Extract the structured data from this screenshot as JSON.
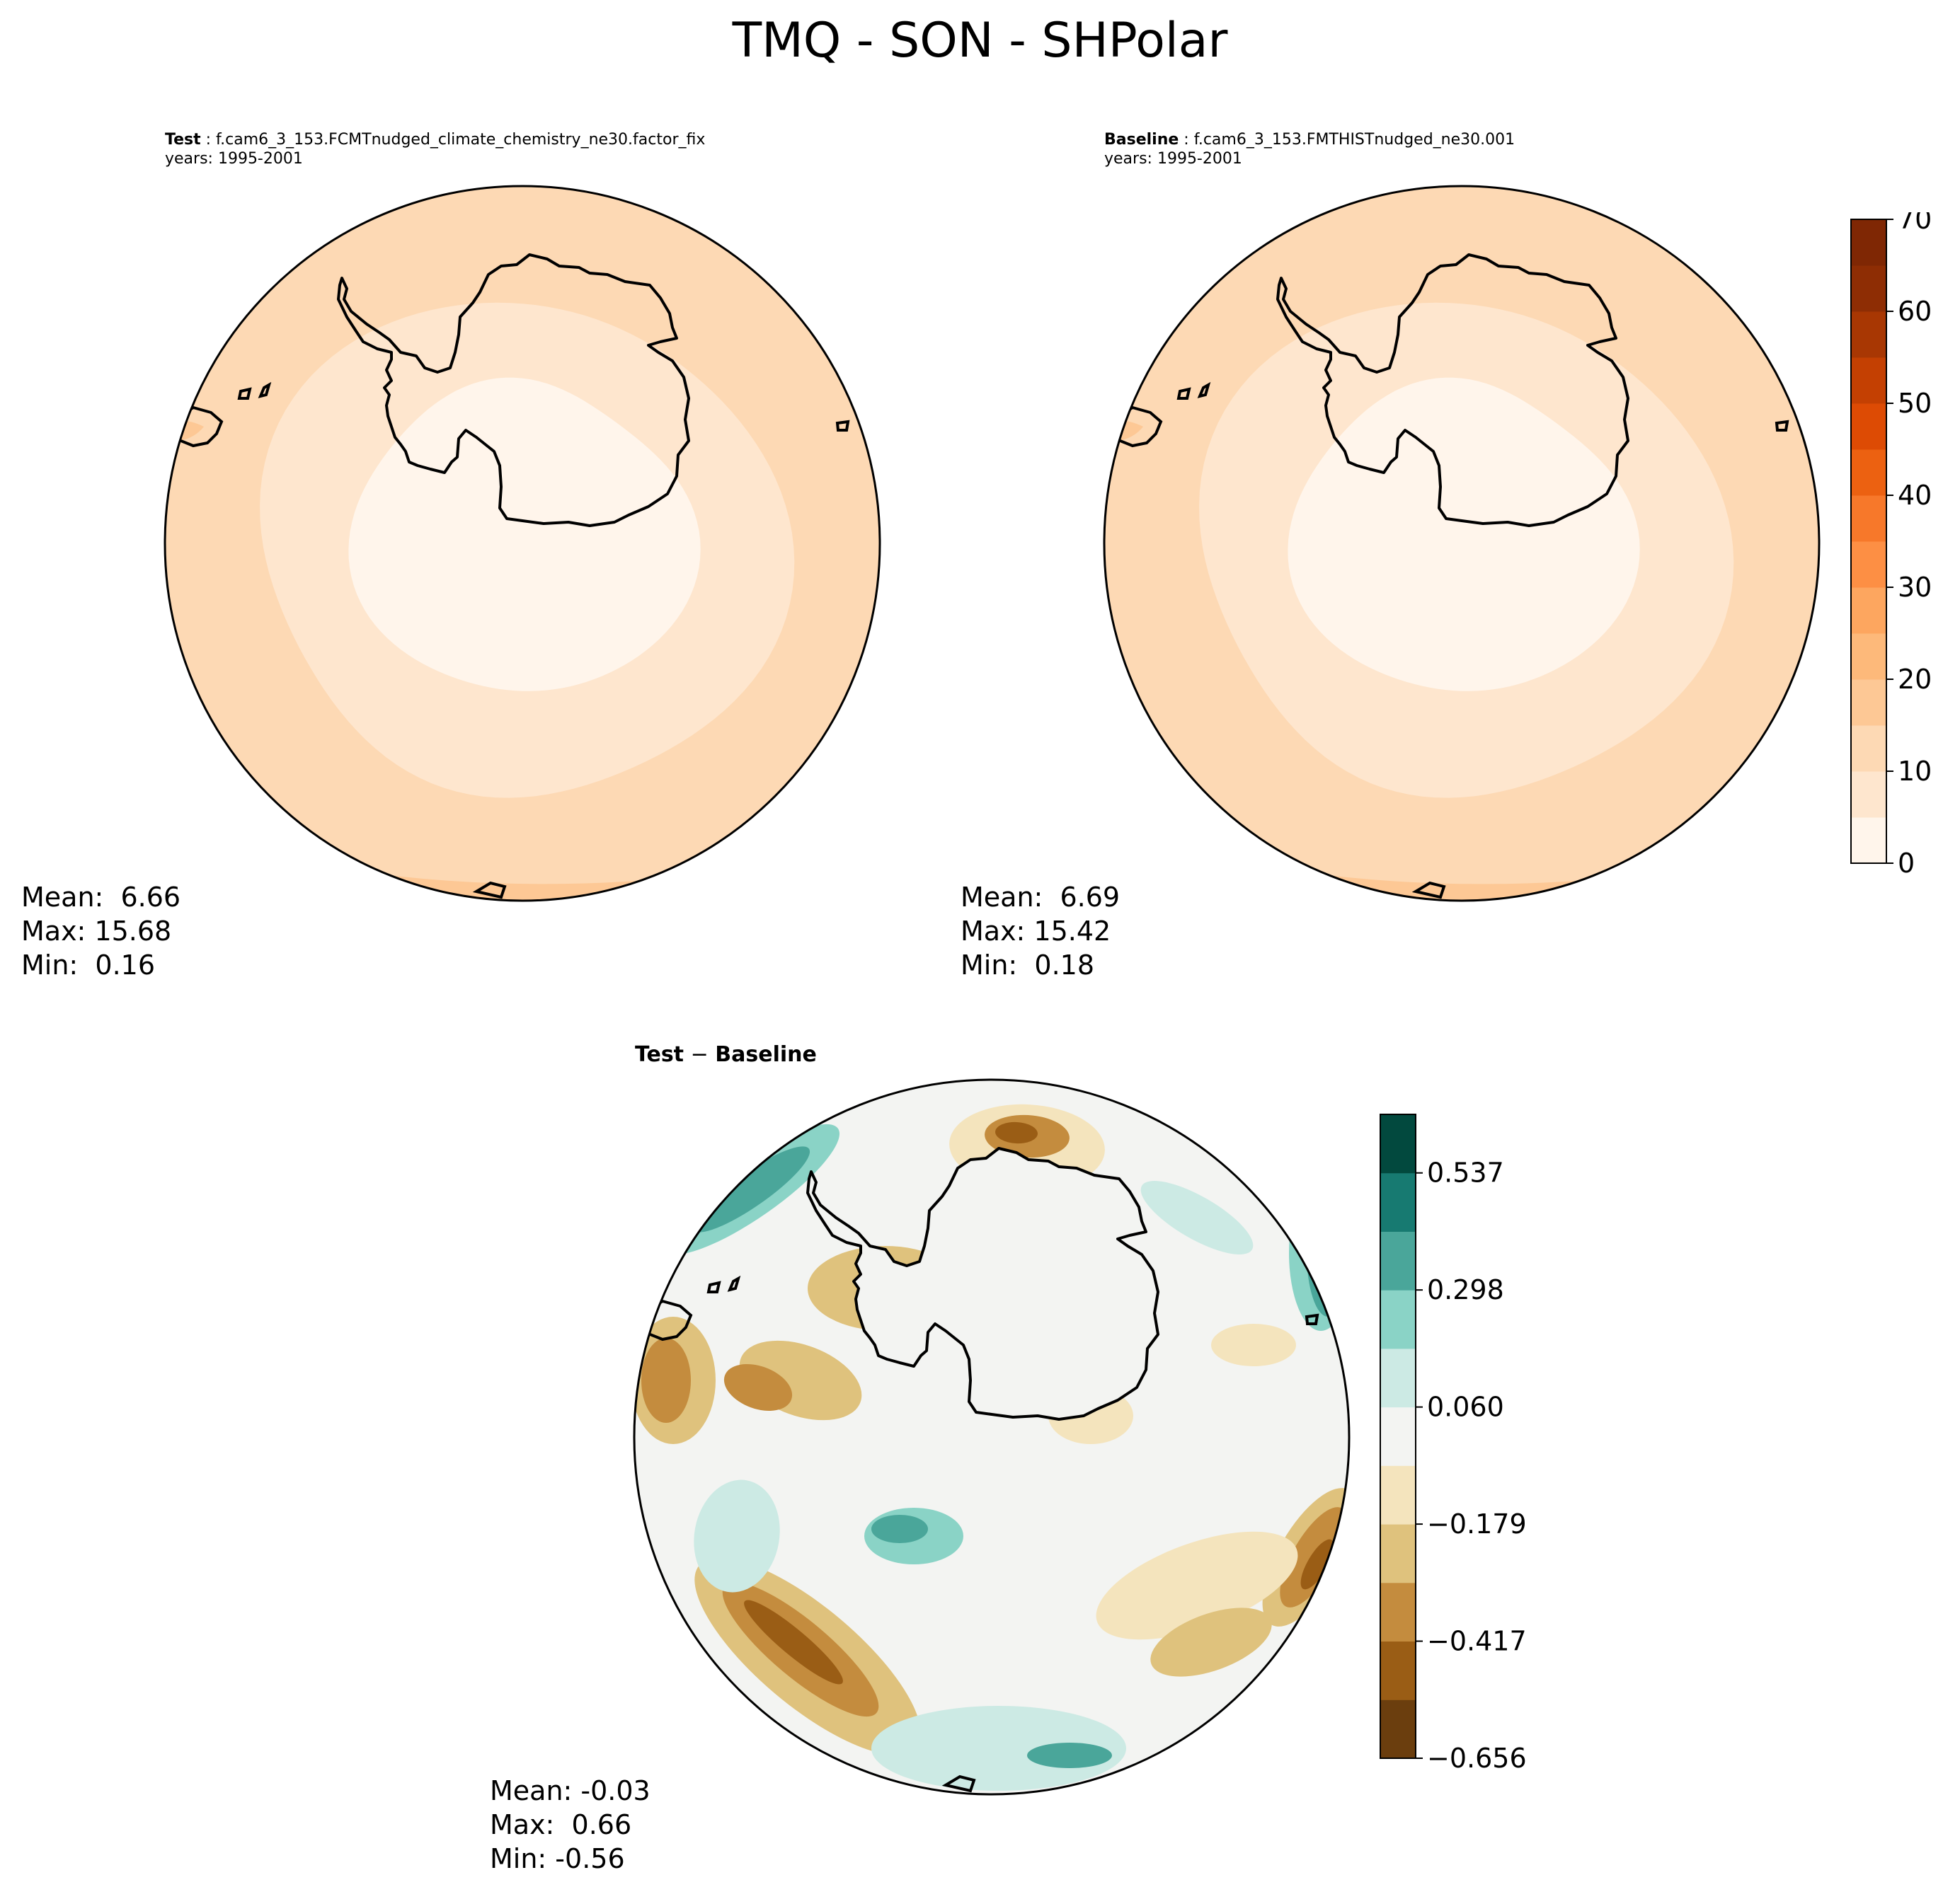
{
  "figure": {
    "title": "TMQ - SON - SHPolar"
  },
  "chart_data": [
    {
      "type": "heatmap",
      "projection": "south polar stereographic",
      "label": "Test",
      "case": "f.cam6_3_153.FCMTnudged_climate_chemistry_ne30.factor_fix",
      "years": "years: 1995-2001",
      "stats": {
        "mean": "Mean:  6.66",
        "max": "Max: 15.68",
        "min": "Min:  0.16"
      },
      "field_levels": [
        2.5,
        7.5,
        12.5,
        15.0
      ],
      "colorbar": {
        "min": 0,
        "max": 70,
        "step": 5,
        "ticks": [
          "0",
          "10",
          "20",
          "30",
          "40",
          "50",
          "60",
          "70"
        ]
      }
    },
    {
      "type": "heatmap",
      "projection": "south polar stereographic",
      "label": "Baseline",
      "case": "f.cam6_3_153.FMTHISTnudged_ne30.001",
      "years": "years: 1995-2001",
      "stats": {
        "mean": "Mean:  6.69",
        "max": "Max: 15.42",
        "min": "Min:  0.18"
      },
      "field_levels": [
        2.5,
        7.5,
        12.5,
        15.0
      ],
      "colorbar": {
        "min": 0,
        "max": 70,
        "step": 5,
        "ticks": [
          "0",
          "10",
          "20",
          "30",
          "40",
          "50",
          "60",
          "70"
        ]
      }
    },
    {
      "type": "heatmap",
      "projection": "south polar stereographic",
      "label": "Test − Baseline",
      "label_bold_a": "Test",
      "label_op": " − ",
      "label_bold_b": "Baseline",
      "stats": {
        "mean": "Mean: -0.03",
        "max": "Max:  0.66",
        "min": "Min: -0.56"
      },
      "colorbar": {
        "levels": 11,
        "ticks": [
          "0.537",
          "0.298",
          "0.060",
          "−0.179",
          "−0.417",
          "−0.656"
        ]
      }
    }
  ],
  "colors": {
    "seq": [
      "#fff5eb",
      "#fee6ce",
      "#fdd9b4",
      "#fdc895",
      "#fdb97a",
      "#fda65f",
      "#fd8f44",
      "#f7782a",
      "#ec6111",
      "#dd4b04",
      "#c44002",
      "#a83703",
      "#8e2d04",
      "#7f2704"
    ],
    "div": [
      "#6b3e0e",
      "#9a5d15",
      "#c48c3e",
      "#dfc27d",
      "#f4e4bd",
      "#f3f4f2",
      "#cceae4",
      "#8ad3c6",
      "#4aa69a",
      "#177a71",
      "#02493e"
    ]
  }
}
